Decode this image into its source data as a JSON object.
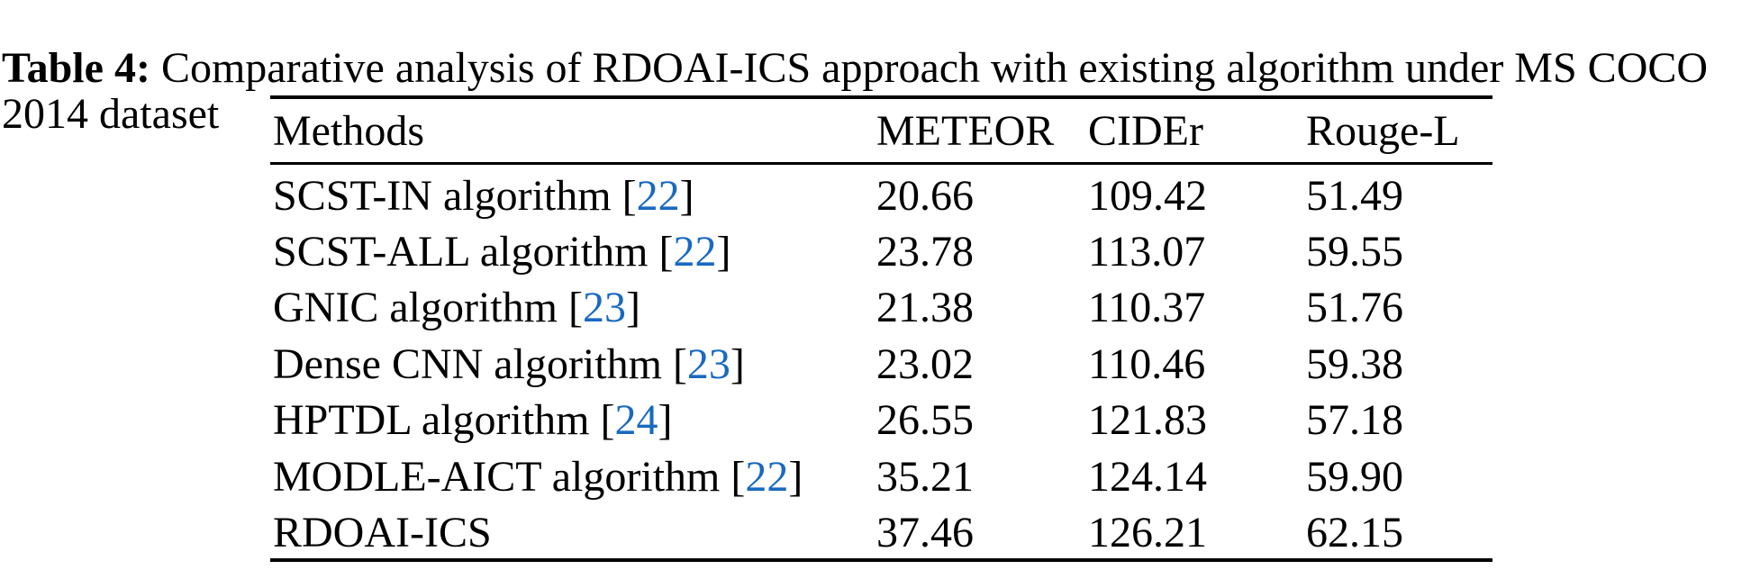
{
  "caption": {
    "label": "Table 4:",
    "text": " Comparative analysis of RDOAI-ICS approach with existing algorithm under MS COCO 2014 dataset"
  },
  "colors": {
    "text": "#000000",
    "background": "#ffffff",
    "citation_link": "#1a69c0",
    "rule": "#000000"
  },
  "table": {
    "headers": [
      "Methods",
      "METEOR",
      "CIDEr",
      "Rouge-L"
    ],
    "rows": [
      {
        "method": "SCST-IN algorithm",
        "ref_prefix": " [",
        "ref": "22",
        "ref_suffix": "]",
        "meteor": "20.66",
        "cider": "109.42",
        "rouge_l": "51.49"
      },
      {
        "method": "SCST-ALL algorithm",
        "ref_prefix": " [",
        "ref": "22",
        "ref_suffix": "]",
        "meteor": "23.78",
        "cider": "113.07",
        "rouge_l": "59.55"
      },
      {
        "method": "GNIC algorithm",
        "ref_prefix": " [",
        "ref": "23",
        "ref_suffix": "]",
        "meteor": "21.38",
        "cider": "110.37",
        "rouge_l": "51.76"
      },
      {
        "method": "Dense CNN algorithm",
        "ref_prefix": " [",
        "ref": "23",
        "ref_suffix": "]",
        "meteor": "23.02",
        "cider": "110.46",
        "rouge_l": "59.38"
      },
      {
        "method": "HPTDL algorithm",
        "ref_prefix": " [",
        "ref": "24",
        "ref_suffix": "]",
        "meteor": "26.55",
        "cider": "121.83",
        "rouge_l": "57.18"
      },
      {
        "method": "MODLE-AICT algorithm",
        "ref_prefix": " [",
        "ref": "22",
        "ref_suffix": "]",
        "meteor": "35.21",
        "cider": "124.14",
        "rouge_l": "59.90"
      },
      {
        "method": "RDOAI-ICS",
        "ref_prefix": "",
        "ref": "",
        "ref_suffix": "",
        "meteor": "37.46",
        "cider": "126.21",
        "rouge_l": "62.15"
      }
    ]
  }
}
